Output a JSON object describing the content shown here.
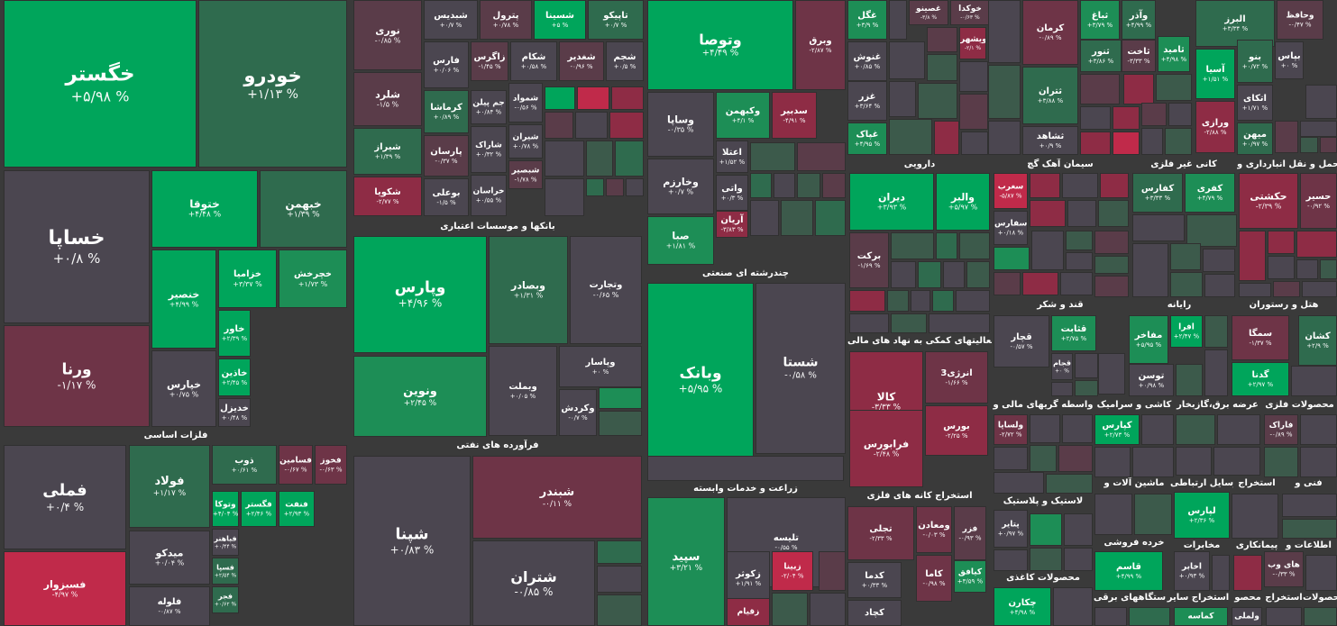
{
  "colors": {
    "strong_up": "#00a55b",
    "up": "#1d8e56",
    "mild_up": "#2f6b4e",
    "slight_up": "#3c5a4b",
    "neutral": "#4b4650",
    "slight_down": "#5a3c49",
    "mild_down": "#6e3447",
    "down": "#8e2c45",
    "strong_down": "#c02a4a"
  },
  "sectors": {
    "flazat": "فلزات اساسی",
    "banks": "بانکها و موسسات اعتباری",
    "refinery": "فرآورده های نفتی",
    "multi": "چندرشته ای صنعتی",
    "agri": "زراعت و خدمات وابسته",
    "pharma": "دارویی",
    "cement": "سیمان آهک گچ",
    "nonmetal": "کانی غیر فلزی",
    "transport": "حمل و نقل انبارداری و",
    "financial": "فعالیتهای کمکی به نهاد های مالی",
    "mining": "استخراج کانه های فلزی",
    "sugar": "قند و شکر",
    "computer": "رایانه",
    "hotel": "هتل و رستوران",
    "brokers": "واسطه گریهای مالی و",
    "tile": "کاشی و سرامیک",
    "utility": "عرضه برق،گازبخار",
    "metalprod": "محصولات فلزی",
    "rubber": "لاستیک و پلاستیک",
    "machinery": "ماشین آلات و",
    "telecom": "وسایل ارتباطی",
    "extraction": "استخراج",
    "tech": "فنی و",
    "retail": "خرده فروشی",
    "comms": "مخابرات",
    "contractor": "پیمانکاری",
    "info": "اطلاعات و",
    "paper": "محصولات کاغذی",
    "electric": "دستگاههای برقی",
    "other_extract": "استخراج سایر",
    "product": "محصو",
    "extract2": "استخراج",
    "products2": "محصولات"
  },
  "tiles": [
    {
      "name": "خگستر",
      "pct": "+۵/۹۸ %"
    },
    {
      "name": "خودرو",
      "pct": "+۱/۱۳ %"
    },
    {
      "name": "خساپا",
      "pct": "+۰/۸ %"
    },
    {
      "name": "ورنا",
      "pct": "-۱/۱۷ %"
    },
    {
      "name": "ختوقا",
      "pct": "+۴/۴۸ %"
    },
    {
      "name": "خبهمن",
      "pct": "+۱/۳۹ %"
    },
    {
      "name": "خنصير",
      "pct": "+۴/۹۹ %"
    },
    {
      "name": "خزاميا",
      "pct": "+۳/۳۷ %"
    },
    {
      "name": "خچرخش",
      "pct": "+۱/۷۳ %"
    },
    {
      "name": "خاور",
      "pct": "+۲/۳۹ %"
    },
    {
      "name": "خپارس",
      "pct": "+۰/۷۵ %"
    },
    {
      "name": "خاذين",
      "pct": "+۲/۴۵ %"
    },
    {
      "name": "خديزل",
      "pct": "+۰/۴۸ %"
    },
    {
      "name": "فملی",
      "pct": "+۰/۴ %"
    },
    {
      "name": "فولاد",
      "pct": "+۱/۱۷ %"
    },
    {
      "name": "ذوب",
      "pct": "+۰/۶۱ %"
    },
    {
      "name": "فسامين",
      "pct": "-۰/۶۷ %"
    },
    {
      "name": "فخوز",
      "pct": "-۰/۶۳ %"
    },
    {
      "name": "وتوكا",
      "pct": "+۴/۰۴ %"
    },
    {
      "name": "فگستر",
      "pct": "+۲/۴۶ %"
    },
    {
      "name": "فنفت",
      "pct": "+۲/۹۳ %"
    },
    {
      "name": "فباهنر",
      "pct": "+۰/۴۴ %"
    },
    {
      "name": "فسپا",
      "pct": "+۲/۵۴ %"
    },
    {
      "name": "فجر",
      "pct": "+۰/۶۲ %"
    },
    {
      "name": "ميدكو",
      "pct": "+۰/۰۴ %"
    },
    {
      "name": "فسبزوار",
      "pct": "-۴/۹۷ %"
    },
    {
      "name": "فلوله",
      "pct": "-۰/۸۷ %"
    },
    {
      "name": "نوری",
      "pct": "-۰/۸۵ %"
    },
    {
      "name": "شلرد",
      "pct": "-۱/۵ %"
    },
    {
      "name": "شيراز",
      "pct": "+۱/۳۹ %"
    },
    {
      "name": "شكويا",
      "pct": "-۲/۷۷ %"
    },
    {
      "name": "شبديس",
      "pct": "+۰/۷ %"
    },
    {
      "name": "پترول",
      "pct": "+۰/۷۸ %"
    },
    {
      "name": "شسينا",
      "pct": "+۵ %"
    },
    {
      "name": "تاپيكو",
      "pct": "+۰/۷ %"
    },
    {
      "name": "فارس",
      "pct": "+۰/۰۶ %"
    },
    {
      "name": "زاگرس",
      "pct": "-۱/۴۵ %"
    },
    {
      "name": "شكام",
      "pct": "+۰/۵۸ %"
    },
    {
      "name": "شغدير",
      "pct": "-۰/۹۶ %"
    },
    {
      "name": "شجم",
      "pct": "+۰/۵ %"
    },
    {
      "name": "كرماشا",
      "pct": "+۰/۸۹ %"
    },
    {
      "name": "جم پيلن",
      "pct": "+۰/۸۴ %"
    },
    {
      "name": "شمواد",
      "pct": "-۰/۵۶ %"
    },
    {
      "name": "پارسان",
      "pct": "-۰/۳۷ %"
    },
    {
      "name": "شاراک",
      "pct": "+۰/۳۲ %"
    },
    {
      "name": "شيران",
      "pct": "+۰/۷۸ %"
    },
    {
      "name": "شبصير",
      "pct": "-۱/۷۸ %"
    },
    {
      "name": "بوعلی",
      "pct": "-۱/۵ %"
    },
    {
      "name": "خراسان",
      "pct": "+۰/۵۵ %"
    },
    {
      "name": "وپارس",
      "pct": "+۴/۹۶ %"
    },
    {
      "name": "وبصادر",
      "pct": "+۱/۳۱ %"
    },
    {
      "name": "وتجارت",
      "pct": "-۰/۶۵ %"
    },
    {
      "name": "ونوين",
      "pct": "+۲/۴۵ %"
    },
    {
      "name": "وبملت",
      "pct": "+۰/۰۵ %"
    },
    {
      "name": "وپاسار",
      "pct": "+۰ %"
    },
    {
      "name": "وكردش",
      "pct": "-۰/۷ %"
    },
    {
      "name": "شپنا",
      "pct": "+۰/۸۳ %"
    },
    {
      "name": "شبندر",
      "pct": "-۰/۱۱ %"
    },
    {
      "name": "شتران",
      "pct": "-۰/۸۵ %"
    },
    {
      "name": "وتوصا",
      "pct": "+۴/۴۹ %"
    },
    {
      "name": "وبرق",
      "pct": "-۲/۸۷ %"
    },
    {
      "name": "وساپا",
      "pct": "-۰/۳۵ %"
    },
    {
      "name": "وكبهمن",
      "pct": "+۴/۱ %"
    },
    {
      "name": "سدبير",
      "pct": "-۴/۹۱ %"
    },
    {
      "name": "اعتلا",
      "pct": "+۱/۵۲ %"
    },
    {
      "name": "وخارزم",
      "pct": "+۰/۷ %"
    },
    {
      "name": "واتی",
      "pct": "+۰/۳ %"
    },
    {
      "name": "آريان",
      "pct": "-۳/۸۳ %"
    },
    {
      "name": "صبا",
      "pct": "+۱/۸۱ %"
    },
    {
      "name": "وبانک",
      "pct": "+۵/۹۵ %"
    },
    {
      "name": "شستا",
      "pct": "-۰/۵۸ %"
    },
    {
      "name": "سپيد",
      "pct": "+۳/۲۱ %"
    },
    {
      "name": "تليسه",
      "pct": "-۰/۵۵ %"
    },
    {
      "name": "زكوثر",
      "pct": "+۱/۹۱ %"
    },
    {
      "name": "زبينا",
      "pct": "-۲/۰۴ %"
    },
    {
      "name": "زقيام",
      "pct": ""
    },
    {
      "name": "غگل",
      "pct": "+۳/۹ %"
    },
    {
      "name": "غصينو",
      "pct": "-۳/۸ %"
    },
    {
      "name": "خوكدا",
      "pct": "-۰/۶۳ %"
    },
    {
      "name": "غنوش",
      "pct": "+۰/۸۵ %"
    },
    {
      "name": "ويشهر",
      "pct": "-۲/۱ %"
    },
    {
      "name": "غزر",
      "pct": "+۳/۶۴ %"
    },
    {
      "name": "غپاک",
      "pct": "+۴/۹۵ %"
    },
    {
      "name": "كرمان",
      "pct": "-۰/۸۹ %"
    },
    {
      "name": "ثباغ",
      "pct": "+۳/۷۹ %"
    },
    {
      "name": "وآذر",
      "pct": "+۴/۹۹ %"
    },
    {
      "name": "ثنور",
      "pct": "+۳/۸۶ %"
    },
    {
      "name": "ثاخت",
      "pct": "-۳/۳۳ %"
    },
    {
      "name": "ثاميد",
      "pct": "+۴/۹۸ %"
    },
    {
      "name": "ثتران",
      "pct": "+۳/۸۸ %"
    },
    {
      "name": "ثشاهد",
      "pct": "+۰/۹ %"
    },
    {
      "name": "البرز",
      "pct": "+۳/۳۴ %"
    },
    {
      "name": "وحافظ",
      "pct": "-۰/۴۷ %"
    },
    {
      "name": "آسيا",
      "pct": "+۱/۵۱ %"
    },
    {
      "name": "بنو",
      "pct": "+۰/۷۲ %"
    },
    {
      "name": "بپاس",
      "pct": "+۰ %"
    },
    {
      "name": "اتكای",
      "pct": "+۱/۷۱ %"
    },
    {
      "name": "ورازی",
      "pct": "-۲/۸۸ %"
    },
    {
      "name": "ميهن",
      "pct": "+۰/۹۷ %"
    },
    {
      "name": "ديران",
      "pct": "+۳/۹۳ %"
    },
    {
      "name": "والبر",
      "pct": "+۵/۹۷ %"
    },
    {
      "name": "بركت",
      "pct": "-۱/۶۹ %"
    },
    {
      "name": "سغرب",
      "pct": "-۵/۸۷ %"
    },
    {
      "name": "سفارس",
      "pct": "+۰/۱۸ %"
    },
    {
      "name": "كفارس",
      "pct": "+۳/۳۳ %"
    },
    {
      "name": "كفرى",
      "pct": "+۴/۷۹ %"
    },
    {
      "name": "حكشتی",
      "pct": "-۲/۳۹ %"
    },
    {
      "name": "حسير",
      "pct": "-۰/۹۲ %"
    },
    {
      "name": "كالا",
      "pct": "-۳/۳۳ %"
    },
    {
      "name": "انرژی3",
      "pct": "-۱/۶۶ %"
    },
    {
      "name": "بورس",
      "pct": "-۲/۲۵ %"
    },
    {
      "name": "فرابورس",
      "pct": "-۲/۴۸ %"
    },
    {
      "name": "قچار",
      "pct": "-۰/۵۷ %"
    },
    {
      "name": "قثابت",
      "pct": "+۲/۷۵ %"
    },
    {
      "name": "قجام",
      "pct": "+۰ %"
    },
    {
      "name": "مفاخر",
      "pct": "+۵/۹۵ %"
    },
    {
      "name": "افرا",
      "pct": "+۲/۴۷ %"
    },
    {
      "name": "توسن",
      "pct": "+۰/۹۸ %"
    },
    {
      "name": "سمگا",
      "pct": "-۱/۳۷ %"
    },
    {
      "name": "كشان",
      "pct": "+۲/۹ %"
    },
    {
      "name": "گدنا",
      "pct": "+۲/۹۷ %"
    },
    {
      "name": "ولساپا",
      "pct": "-۲/۷۲ %"
    },
    {
      "name": "كپارس",
      "pct": "+۲/۷۳ %"
    },
    {
      "name": "فاراک",
      "pct": "-۰/۸۹ %"
    },
    {
      "name": "تجلی",
      "pct": "-۲/۳۳ %"
    },
    {
      "name": "ومعادن",
      "pct": "-۰/۰۳ %"
    },
    {
      "name": "فزر",
      "pct": "-۰/۹۳ %"
    },
    {
      "name": "كاما",
      "pct": "-۰/۹۸ %"
    },
    {
      "name": "كيافق",
      "pct": "+۳/۵۹ %"
    },
    {
      "name": "كدما",
      "pct": "+۰/۳۳ %"
    },
    {
      "name": "كچاد",
      "pct": ""
    },
    {
      "name": "پتاير",
      "pct": "+۰/۹۷ %"
    },
    {
      "name": "لپارس",
      "pct": "+۲/۳۶ %"
    },
    {
      "name": "قاسم",
      "pct": "+۴/۹۹ %"
    },
    {
      "name": "اخابر",
      "pct": "+۰/۹۳ %"
    },
    {
      "name": "های وب",
      "pct": "-۰/۳۳ %"
    },
    {
      "name": "چكارن",
      "pct": "+۴/۹۸ %"
    },
    {
      "name": "كماسه",
      "pct": ""
    },
    {
      "name": "ولملی",
      "pct": ""
    }
  ]
}
